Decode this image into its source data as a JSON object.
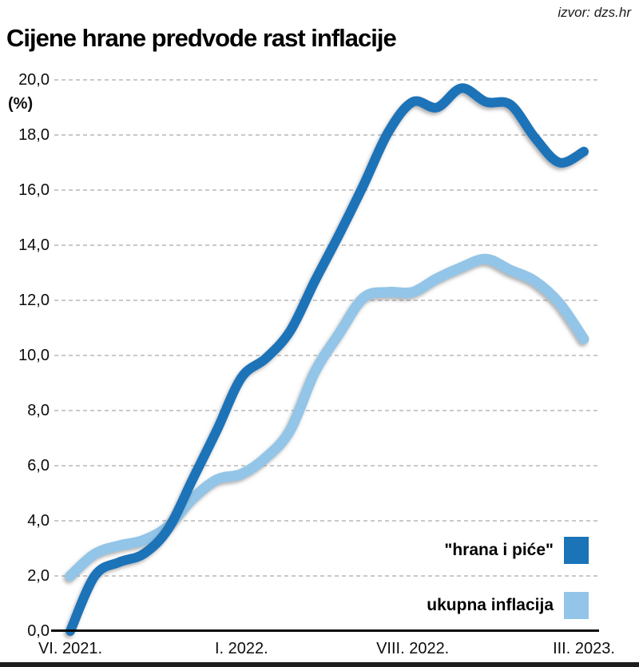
{
  "header": {
    "source": "izvor: dzs.hr",
    "title": "Cijene hrane predvode rast inflacije"
  },
  "colors": {
    "food_line": "#1b73b8",
    "total_line": "#92c5e8",
    "grid": "#c9c9c9",
    "axis": "#0a0a0a",
    "footer_bar": "#1d1d1d"
  },
  "y_axis": {
    "unit_label": "(%)",
    "tick_labels": [
      "20,0",
      "18,0",
      "16,0",
      "14,0",
      "12,0",
      "10,0",
      "8,0",
      "6,0",
      "4,0",
      "2,0",
      "0,0"
    ],
    "min": 0,
    "max": 20,
    "step": 2
  },
  "x_axis": {
    "tick_labels": [
      "VI. 2021.",
      "I. 2022.",
      "VIII. 2022.",
      "III. 2023."
    ],
    "tick_month_indices": [
      0,
      7,
      14,
      21
    ]
  },
  "legend": {
    "items": [
      {
        "label": "\"hrana i piće\"",
        "series": "hrana i piće"
      },
      {
        "label": "ukupna inflacija",
        "series": "ukupna inflacija"
      }
    ]
  },
  "chart_data": {
    "type": "line",
    "title": "Cijene hrane predvode rast inflacije",
    "ylabel": "(%)",
    "ylim": [
      0,
      20
    ],
    "grid": "dashed-horizontal",
    "legend_position": "bottom-right-inside",
    "x": [
      "VI. 2021.",
      "VII. 2021.",
      "VIII. 2021.",
      "IX. 2021.",
      "X. 2021.",
      "XI. 2021.",
      "XII. 2021.",
      "I. 2022.",
      "II. 2022.",
      "III. 2022.",
      "IV. 2022.",
      "V. 2022.",
      "VI. 2022.",
      "VII. 2022.",
      "VIII. 2022.",
      "IX. 2022.",
      "X. 2022.",
      "XI. 2022.",
      "XII. 2022.",
      "I. 2023.",
      "II. 2023.",
      "III. 2023."
    ],
    "series": [
      {
        "name": "hrana i piće",
        "color": "#1b73b8",
        "stroke_width": 12,
        "values": [
          0.0,
          2.0,
          2.5,
          2.8,
          3.7,
          5.5,
          7.3,
          9.2,
          9.9,
          10.9,
          12.7,
          14.4,
          16.2,
          18.1,
          19.2,
          19.0,
          19.7,
          19.2,
          19.1,
          17.9,
          17.0,
          17.4
        ]
      },
      {
        "name": "ukupna inflacija",
        "color": "#92c5e8",
        "stroke_width": 13,
        "values": [
          2.0,
          2.8,
          3.1,
          3.3,
          3.8,
          4.8,
          5.5,
          5.7,
          6.3,
          7.3,
          9.4,
          10.8,
          12.1,
          12.3,
          12.3,
          12.8,
          13.2,
          13.5,
          13.1,
          12.7,
          11.9,
          10.6
        ]
      }
    ]
  }
}
